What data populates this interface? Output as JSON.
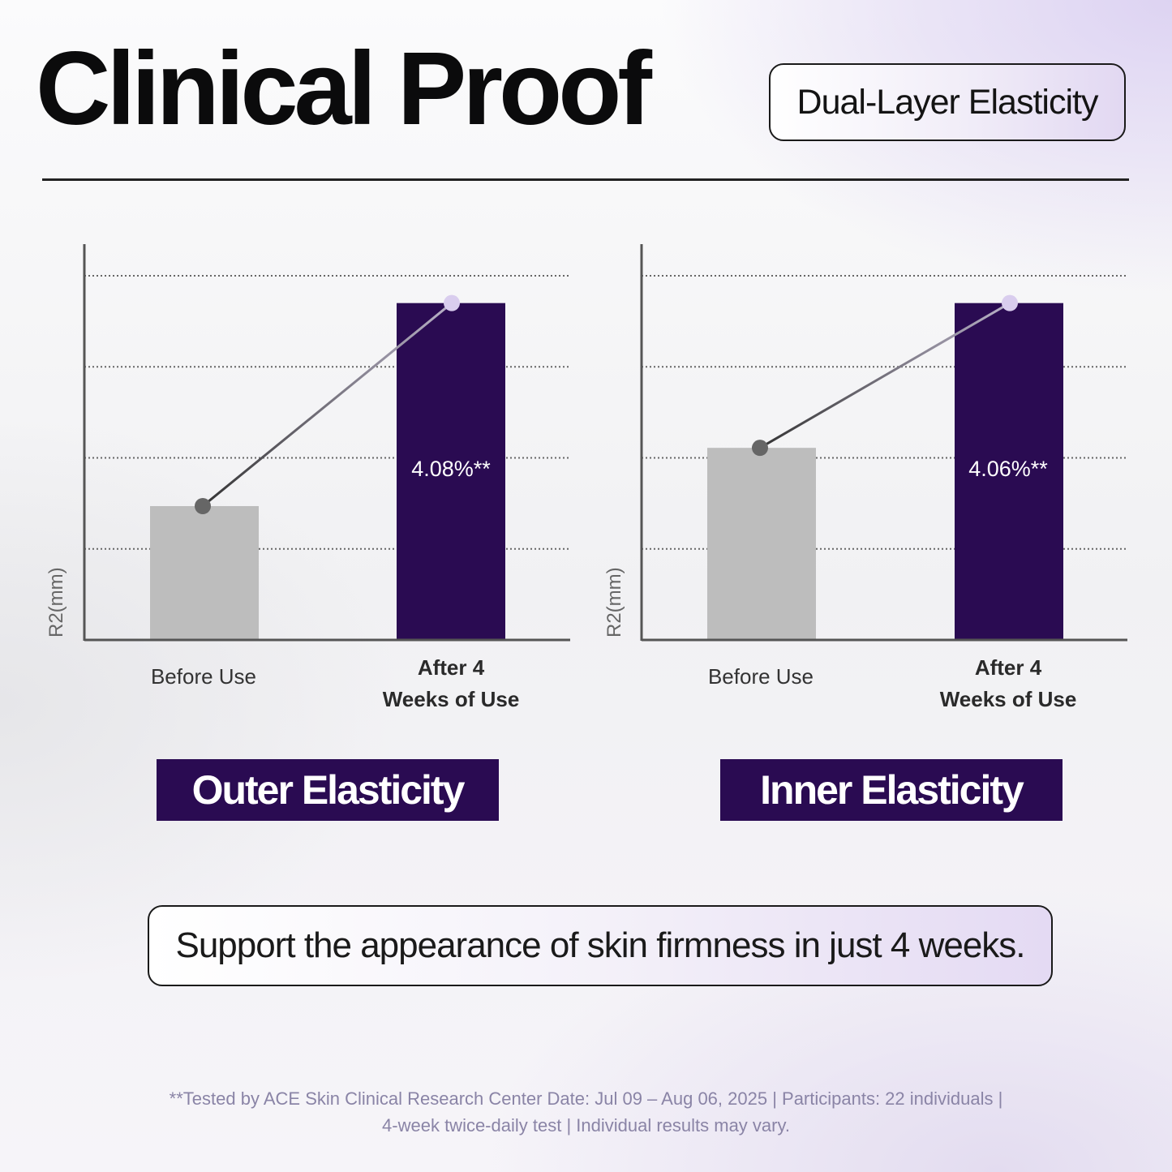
{
  "header": {
    "title": "Clinical Proof",
    "tag": "Dual-Layer Elasticity"
  },
  "colors": {
    "before_bar": "#bdbdbd",
    "after_bar": "#2a0b52",
    "before_point": "#666666",
    "after_point": "#d9cdee",
    "grid": "#666666",
    "axis": "#555555"
  },
  "chart_data": [
    {
      "type": "bar",
      "title": "Outer Elasticity",
      "ylabel": "R2(mm)",
      "categories": [
        "Before Use",
        "After 4\nWeeks of Use"
      ],
      "values": [
        1.47,
        3.7
      ],
      "ylim": [
        0,
        4
      ],
      "yticks": [
        1,
        2,
        3,
        4
      ],
      "grid": true,
      "connector_line": true,
      "value_labels": [
        "",
        "4.08%**"
      ]
    },
    {
      "type": "bar",
      "title": "Inner Elasticity",
      "ylabel": "R2(mm)",
      "categories": [
        "Before Use",
        "After 4\nWeeks of Use"
      ],
      "values": [
        2.11,
        3.7
      ],
      "ylim": [
        0,
        4
      ],
      "yticks": [
        1,
        2,
        3,
        4
      ],
      "grid": true,
      "connector_line": true,
      "value_labels": [
        "",
        "4.06%**"
      ]
    }
  ],
  "tagline": "Support the appearance of skin firmness in just 4 weeks.",
  "footnote": {
    "line1": "**Tested by ACE Skin Clinical Research Center Date: Jul 09 – Aug 06, 2025 | Participants: 22 individuals |",
    "line2": "4-week twice-daily test | Individual results may vary."
  }
}
